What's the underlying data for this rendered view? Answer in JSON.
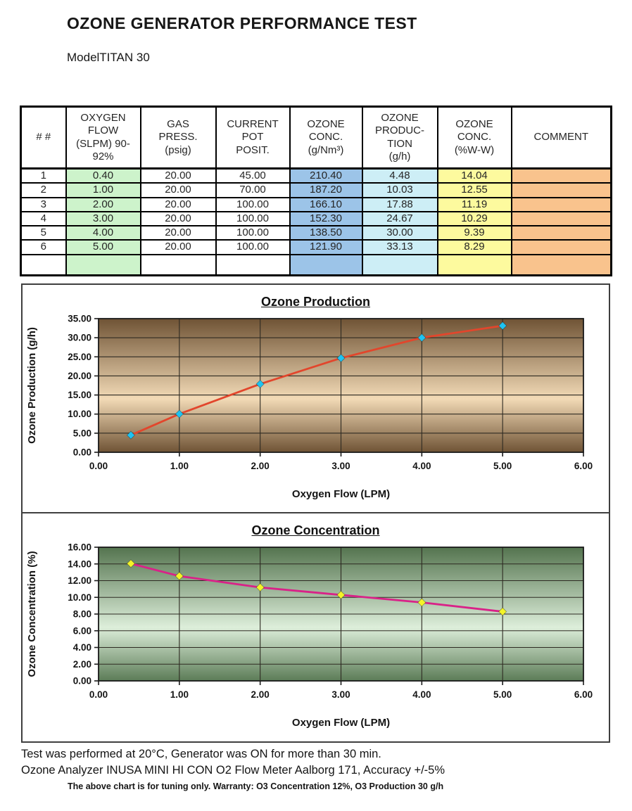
{
  "page": {
    "title": "OZONE GENERATOR PERFORMANCE TEST",
    "model_label": "ModelTITAN 30"
  },
  "table": {
    "headers": [
      "# #",
      "OXYGEN\nFLOW\n(SLPM) 90-\n92%",
      "GAS\nPRESS.\n(psig)",
      "CURRENT\nPOT\nPOSIT.",
      "OZONE\nCONC.\n(g/Nm³)",
      "OZONE\nPRODUC-\nTION\n(g/h)",
      "OZONE\nCONC.\n(%W-W)",
      "COMMENT"
    ],
    "col_colors": [
      null,
      "#cdf3cb",
      null,
      null,
      "#9cc4e8",
      "#cdeef6",
      "#fdfa9e",
      "#f9c38d"
    ],
    "rows": [
      [
        "1",
        "0.40",
        "20.00",
        "45.00",
        "210.40",
        "4.48",
        "14.04",
        ""
      ],
      [
        "2",
        "1.00",
        "20.00",
        "70.00",
        "187.20",
        "10.03",
        "12.55",
        ""
      ],
      [
        "3",
        "2.00",
        "20.00",
        "100.00",
        "166.10",
        "17.88",
        "11.19",
        ""
      ],
      [
        "4",
        "3.00",
        "20.00",
        "100.00",
        "152.30",
        "24.67",
        "10.29",
        ""
      ],
      [
        "5",
        "4.00",
        "20.00",
        "100.00",
        "138.50",
        "30.00",
        "9.39",
        ""
      ],
      [
        "6",
        "5.00",
        "20.00",
        "100.00",
        "121.90",
        "33.13",
        "8.29",
        ""
      ],
      [
        "",
        "",
        "",
        "",
        "",
        "",
        "",
        ""
      ]
    ]
  },
  "chart_data": [
    {
      "type": "line",
      "title": "Ozone Production",
      "xlabel": "Oxygen Flow (LPM)",
      "ylabel": "Ozone Production (g/h)",
      "x": [
        0.4,
        1.0,
        2.0,
        3.0,
        4.0,
        5.0
      ],
      "y": [
        4.48,
        10.03,
        17.88,
        24.67,
        30.0,
        33.13
      ],
      "xlim": [
        0,
        6
      ],
      "xtick_step": 1,
      "ylim": [
        0,
        35
      ],
      "ytick_step": 5,
      "grid": true,
      "legend": "none",
      "line_color": "#e2462c",
      "marker_color": "#1fc3f2",
      "bg_gradient": [
        "#6f5335",
        "#f2dab6",
        "#6f5335"
      ]
    },
    {
      "type": "line",
      "title": "Ozone Concentration",
      "xlabel": "Oxygen Flow (LPM)",
      "ylabel": "Ozone Concentration (%)",
      "x": [
        0.4,
        1.0,
        2.0,
        3.0,
        4.0,
        5.0
      ],
      "y": [
        14.04,
        12.55,
        11.19,
        10.29,
        9.39,
        8.29
      ],
      "xlim": [
        0,
        6
      ],
      "xtick_step": 1,
      "ylim": [
        0,
        16
      ],
      "ytick_step": 2,
      "grid": true,
      "legend": "none",
      "line_color": "#d92288",
      "marker_color": "#f4f428",
      "bg_gradient": [
        "#54744f",
        "#ddeeda",
        "#5c7c57"
      ]
    }
  ],
  "footer": {
    "line1": "Test was performed at 20°C, Generator was ON for more than 30 min.",
    "line2": "Ozone Analyzer INUSA MINI HI CON O2 Flow Meter Aalborg 171, Accuracy +/-5%",
    "line3": "The above chart is for tuning only. Warranty: O3 Concentration 12%, O3 Production 30 g/h"
  }
}
